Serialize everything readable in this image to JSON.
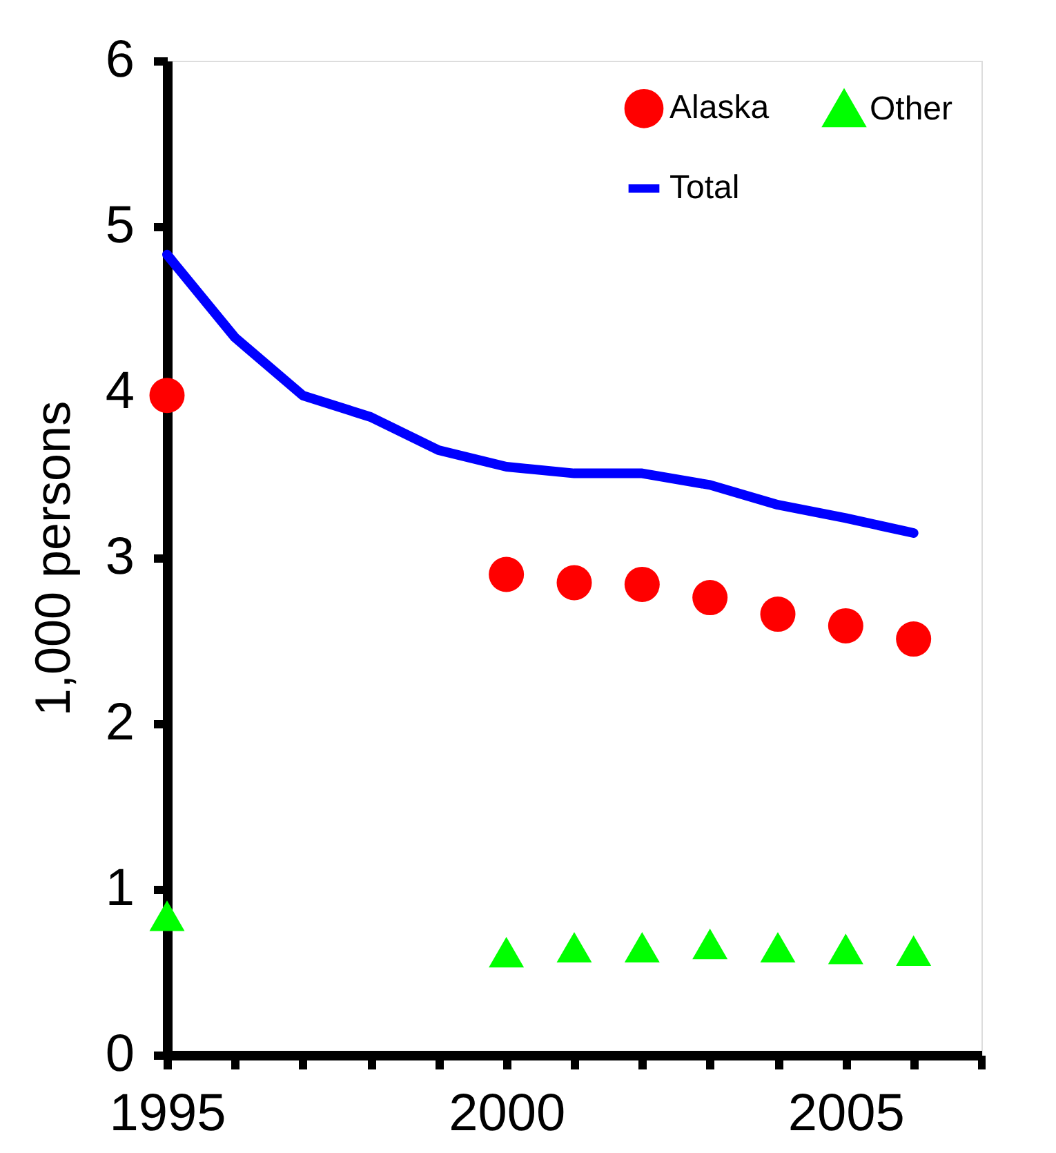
{
  "chart_data": {
    "type": "line",
    "ylabel": "1,000 persons",
    "xlim": [
      1995,
      2007
    ],
    "xticks": [
      1995,
      {
        "value": 1996,
        "label": null
      },
      {
        "value": 1997,
        "label": null
      },
      {
        "value": 1998,
        "label": null
      },
      {
        "value": 1999,
        "label": null
      },
      2000,
      {
        "value": 2001,
        "label": null
      },
      {
        "value": 2002,
        "label": null
      },
      {
        "value": 2003,
        "label": null
      },
      {
        "value": 2004,
        "label": null
      },
      2005,
      {
        "value": 2006,
        "label": null
      },
      {
        "value": 2007,
        "label": null
      }
    ],
    "ylim": [
      0,
      6
    ],
    "yticks": [
      0,
      1,
      2,
      3,
      4,
      5,
      6
    ],
    "grid": false,
    "legend": "top right",
    "series": [
      {
        "name": "Alaska",
        "type": "scatter",
        "marker": "circle",
        "color": "#ff0000",
        "x": [
          1995,
          2000,
          2001,
          2002,
          2003,
          2004,
          2005,
          2006
        ],
        "values": [
          3.98,
          2.9,
          2.85,
          2.84,
          2.76,
          2.66,
          2.59,
          2.51
        ]
      },
      {
        "name": "Other",
        "type": "scatter",
        "marker": "triangle",
        "color": "#00ff00",
        "x": [
          1995,
          2000,
          2001,
          2002,
          2003,
          2004,
          2005,
          2006
        ],
        "values": [
          0.84,
          0.62,
          0.65,
          0.65,
          0.67,
          0.65,
          0.64,
          0.63
        ]
      },
      {
        "name": "Total",
        "marker": "none",
        "line_style": "solid",
        "color": "#0000ff",
        "x": [
          1995,
          1996,
          1997,
          1998,
          1999,
          2000,
          2001,
          2002,
          2003,
          2004,
          2005,
          2006
        ],
        "values": [
          4.83,
          4.33,
          3.98,
          3.85,
          3.65,
          3.55,
          3.51,
          3.51,
          3.44,
          3.32,
          3.24,
          3.15
        ]
      }
    ]
  }
}
